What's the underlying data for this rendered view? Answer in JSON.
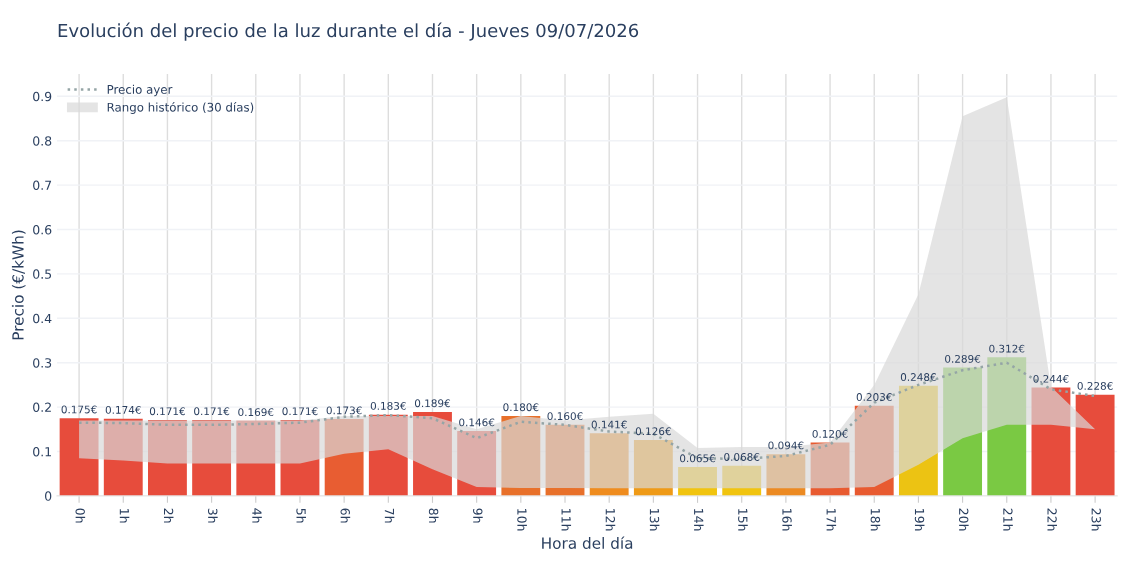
{
  "chart_data": {
    "type": "bar",
    "title": "Evolución del precio de la luz durante el día - Jueves 09/07/2026",
    "xlabel": "Hora del día",
    "ylabel": "Precio (€/kWh)",
    "categories": [
      "0h",
      "1h",
      "2h",
      "3h",
      "4h",
      "5h",
      "6h",
      "7h",
      "8h",
      "9h",
      "10h",
      "11h",
      "12h",
      "13h",
      "14h",
      "15h",
      "16h",
      "17h",
      "18h",
      "19h",
      "20h",
      "21h",
      "22h",
      "23h"
    ],
    "series": [
      {
        "values": [
          0.175,
          0.174,
          0.171,
          0.171,
          0.169,
          0.171,
          0.173,
          0.183,
          0.189,
          0.146,
          0.18,
          0.16,
          0.141,
          0.126,
          0.065,
          0.068,
          0.094,
          0.12,
          0.203,
          0.248,
          0.289,
          0.312,
          0.244,
          0.228
        ],
        "colors": [
          "#e74c3c",
          "#e74c3c",
          "#e74c3c",
          "#e74c3c",
          "#e74c3c",
          "#e74c3c",
          "#e85d32",
          "#e74c3c",
          "#e74c3c",
          "#e74c3c",
          "#e8702a",
          "#e8702a",
          "#ef8c1e",
          "#ef9a16",
          "#f1c40f",
          "#f1c40f",
          "#ec8a22",
          "#e85a30",
          "#e85a30",
          "#ecc313",
          "#7ac943",
          "#7ac943",
          "#e74c3c",
          "#e74c3c"
        ],
        "value_labels": [
          "0.175€",
          "0.174€",
          "0.171€",
          "0.171€",
          "0.169€",
          "0.171€",
          "0.173€",
          "0.183€",
          "0.189€",
          "0.146€",
          "0.180€",
          "0.160€",
          "0.141€",
          "0.126€",
          "0.065€",
          "0.068€",
          "0.094€",
          "0.120€",
          "0.203€",
          "0.248€",
          "0.289€",
          "0.312€",
          "0.244€",
          "0.228€"
        ]
      },
      {
        "type": "line",
        "name": "Rango histórico (30 días)",
        "color": "#d9d9d9",
        "values": [
          null,
          null,
          null,
          null,
          null,
          null,
          null,
          null,
          null,
          null,
          null,
          null,
          null,
          null,
          null,
          null,
          null,
          null,
          null,
          null,
          null,
          null,
          null,
          null
        ],
        "upper": [
          0.17,
          0.17,
          0.17,
          0.17,
          0.17,
          0.17,
          0.18,
          0.18,
          0.18,
          0.15,
          0.18,
          0.17,
          0.178,
          0.185,
          0.108,
          0.11,
          0.11,
          0.12,
          0.25,
          0.454,
          0.855,
          0.898,
          0.246,
          0.15
        ],
        "lower": [
          0.085,
          0.08,
          0.073,
          0.073,
          0.073,
          0.073,
          0.095,
          0.105,
          0.06,
          0.02,
          0.018,
          0.018,
          0.017,
          0.017,
          0.017,
          0.017,
          0.017,
          0.017,
          0.02,
          0.07,
          0.13,
          0.16,
          0.16,
          0.15
        ]
      },
      {
        "type": "line",
        "name": "Precio ayer",
        "color": "#95a5a6",
        "line_style": "dotted",
        "values": [
          0.165,
          0.164,
          0.16,
          0.16,
          0.162,
          0.165,
          0.178,
          0.182,
          0.175,
          0.13,
          0.167,
          0.16,
          0.145,
          0.14,
          0.085,
          0.083,
          0.09,
          0.115,
          0.21,
          0.25,
          0.283,
          0.3,
          0.24,
          0.225
        ]
      }
    ],
    "ylim": [
      0,
      0.95
    ],
    "yticks": [
      0,
      0.1,
      0.2,
      0.3,
      0.4,
      0.5,
      0.6,
      0.7,
      0.8,
      0.9
    ],
    "grid": true,
    "legend": "top left"
  }
}
